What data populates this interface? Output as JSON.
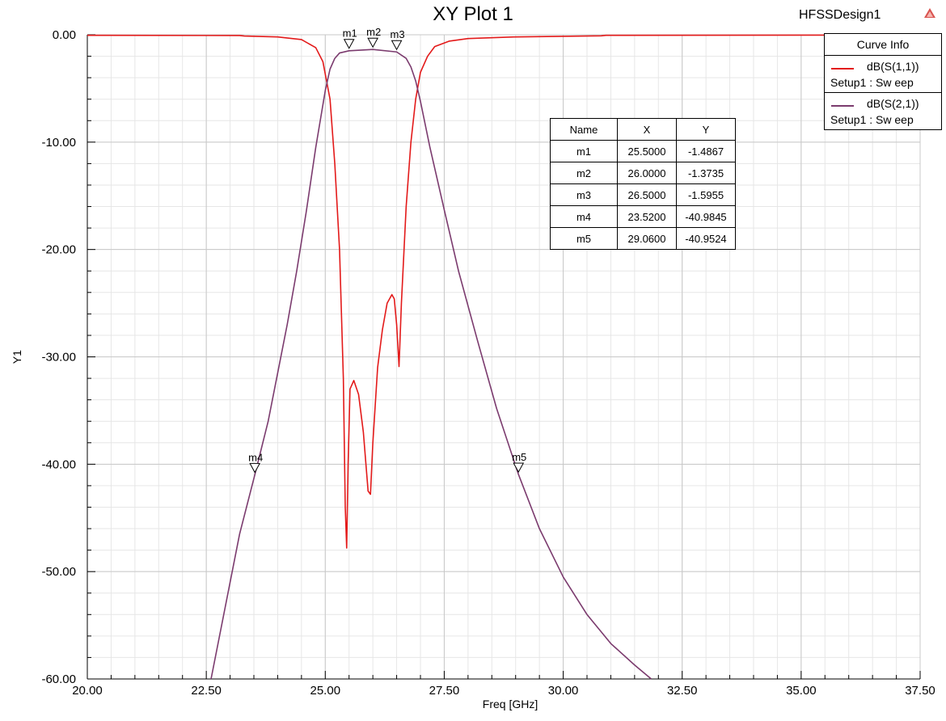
{
  "header": {
    "title": "XY Plot 1",
    "design_name": "HFSSDesign1",
    "logo_icon": "ansys-logo-icon"
  },
  "legend": {
    "title": "Curve Info",
    "entries": [
      {
        "name": "dB(S(1,1))",
        "setup": "Setup1 : Sw eep",
        "color": "#e31a1a"
      },
      {
        "name": "dB(S(2,1))",
        "setup": "Setup1 : Sw eep",
        "color": "#7b3b6e"
      }
    ]
  },
  "marker_table": {
    "headers": [
      "Name",
      "X",
      "Y"
    ],
    "rows": [
      [
        "m1",
        "25.5000",
        "-1.4867"
      ],
      [
        "m2",
        "26.0000",
        "-1.3735"
      ],
      [
        "m3",
        "26.5000",
        "-1.5955"
      ],
      [
        "m4",
        "23.5200",
        "-40.9845"
      ],
      [
        "m5",
        "29.0600",
        "-40.9524"
      ]
    ]
  },
  "chart_data": {
    "type": "line",
    "title": "XY Plot 1",
    "xlabel": "Freq [GHz]",
    "ylabel": "Y1",
    "xlim": [
      20,
      37.5
    ],
    "ylim": [
      -60,
      0
    ],
    "xticks": [
      "20.00",
      "22.50",
      "25.00",
      "27.50",
      "30.00",
      "32.50",
      "35.00",
      "37.50"
    ],
    "yticks": [
      "0.00",
      "-10.00",
      "-20.00",
      "-30.00",
      "-40.00",
      "-50.00",
      "-60.00"
    ],
    "grid": true,
    "legend_position": "top-right",
    "series": [
      {
        "name": "dB(S(1,1))",
        "color": "#e31a1a",
        "points": [
          [
            20.0,
            -0.05
          ],
          [
            23.2,
            -0.07
          ],
          [
            23.3,
            -0.12
          ],
          [
            24.0,
            -0.2
          ],
          [
            24.5,
            -0.45
          ],
          [
            24.8,
            -1.2
          ],
          [
            24.95,
            -2.5
          ],
          [
            25.1,
            -6
          ],
          [
            25.2,
            -12
          ],
          [
            25.3,
            -20
          ],
          [
            25.38,
            -32
          ],
          [
            25.42,
            -44
          ],
          [
            25.45,
            -47.8
          ],
          [
            25.48,
            -40
          ],
          [
            25.52,
            -33
          ],
          [
            25.6,
            -32.2
          ],
          [
            25.7,
            -33.5
          ],
          [
            25.8,
            -37
          ],
          [
            25.9,
            -42.5
          ],
          [
            25.95,
            -42.8
          ],
          [
            26.0,
            -38
          ],
          [
            26.1,
            -31
          ],
          [
            26.2,
            -27.5
          ],
          [
            26.3,
            -25
          ],
          [
            26.4,
            -24.2
          ],
          [
            26.45,
            -24.6
          ],
          [
            26.5,
            -27
          ],
          [
            26.55,
            -30.9
          ],
          [
            26.6,
            -25
          ],
          [
            26.7,
            -16
          ],
          [
            26.8,
            -10
          ],
          [
            26.9,
            -6
          ],
          [
            27.0,
            -3.5
          ],
          [
            27.15,
            -2
          ],
          [
            27.3,
            -1.1
          ],
          [
            27.6,
            -0.6
          ],
          [
            28.0,
            -0.35
          ],
          [
            29.0,
            -0.2
          ],
          [
            30.8,
            -0.1
          ],
          [
            30.9,
            -0.05
          ],
          [
            37.5,
            -0.02
          ]
        ]
      },
      {
        "name": "dB(S(2,1))",
        "color": "#7b3b6e",
        "points": [
          [
            22.6,
            -60
          ],
          [
            22.8,
            -55.5
          ],
          [
            23.0,
            -51
          ],
          [
            23.2,
            -46.5
          ],
          [
            23.52,
            -40.98
          ],
          [
            23.8,
            -36
          ],
          [
            24.0,
            -31.5
          ],
          [
            24.2,
            -27
          ],
          [
            24.4,
            -22
          ],
          [
            24.6,
            -16.5
          ],
          [
            24.8,
            -10.5
          ],
          [
            25.0,
            -5.2
          ],
          [
            25.1,
            -3.2
          ],
          [
            25.2,
            -2.2
          ],
          [
            25.3,
            -1.7
          ],
          [
            25.5,
            -1.49
          ],
          [
            26.0,
            -1.37
          ],
          [
            26.5,
            -1.6
          ],
          [
            26.7,
            -2.2
          ],
          [
            26.8,
            -3.0
          ],
          [
            26.9,
            -4.3
          ],
          [
            27.0,
            -6.2
          ],
          [
            27.2,
            -10.5
          ],
          [
            27.5,
            -16.3
          ],
          [
            27.8,
            -22
          ],
          [
            28.2,
            -28.5
          ],
          [
            28.6,
            -34.8
          ],
          [
            29.06,
            -40.95
          ],
          [
            29.5,
            -46
          ],
          [
            30.0,
            -50.5
          ],
          [
            30.5,
            -54
          ],
          [
            31.0,
            -56.7
          ],
          [
            31.5,
            -58.7
          ],
          [
            31.85,
            -60
          ]
        ]
      }
    ],
    "markers": [
      {
        "name": "m1",
        "x": 25.5,
        "y": -1.4867
      },
      {
        "name": "m2",
        "x": 26.0,
        "y": -1.3735
      },
      {
        "name": "m3",
        "x": 26.5,
        "y": -1.5955
      },
      {
        "name": "m4",
        "x": 23.52,
        "y": -40.9845
      },
      {
        "name": "m5",
        "x": 29.06,
        "y": -40.9524
      }
    ]
  }
}
